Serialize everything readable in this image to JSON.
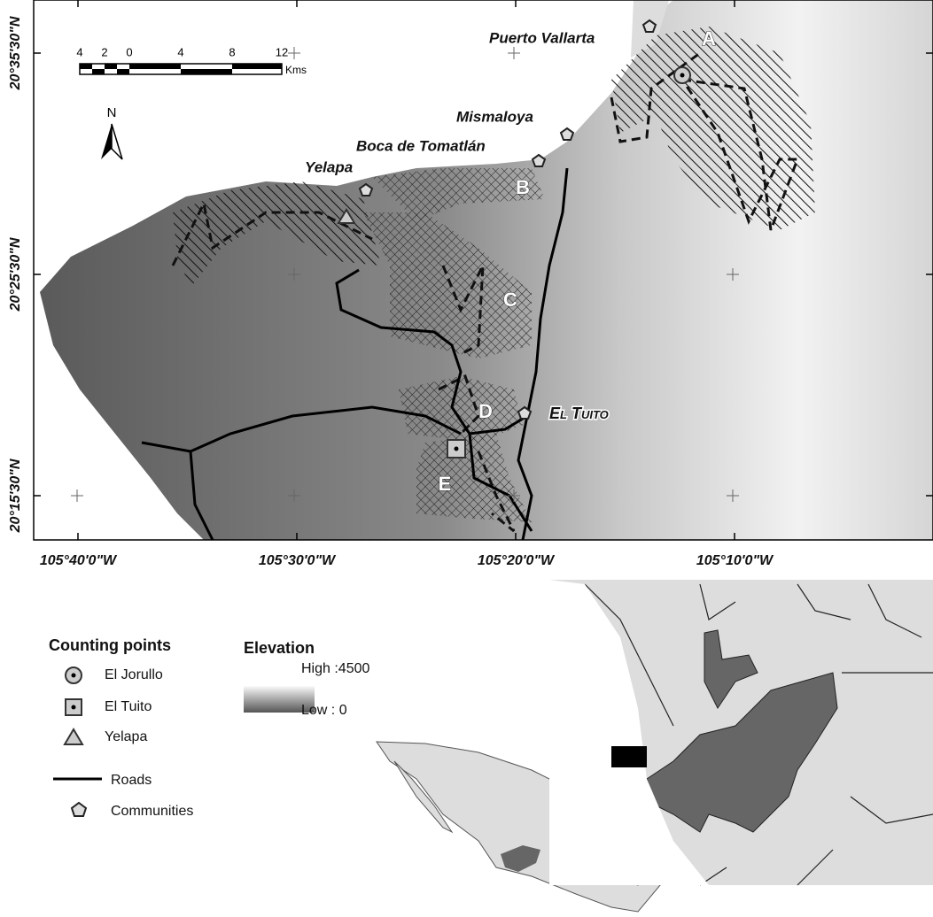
{
  "map": {
    "places": [
      "Puerto Vallarta",
      "Mismaloya",
      "Boca de Tomatlán",
      "Yelapa",
      "El Tuito"
    ],
    "zones": [
      "A",
      "B",
      "C",
      "D",
      "E"
    ],
    "lat_labels": [
      "20°35'30\"N",
      "20°25'30\"N",
      "20°15'30\"N"
    ],
    "lon_labels": [
      "105°40'0\"W",
      "105°30'0\"W",
      "105°20'0\"W",
      "105°10'0\"W"
    ],
    "scale": {
      "ticks": [
        "4",
        "2",
        "0",
        "4",
        "8",
        "12"
      ],
      "unit": "Kms"
    },
    "north": "N"
  },
  "legend": {
    "counting_title": "Counting points",
    "counting_items": [
      "El Jorullo",
      "El Tuito",
      "Yelapa"
    ],
    "roads": "Roads",
    "communities": "Communities",
    "elevation_title": "Elevation",
    "high": "High :4500",
    "low": "Low : 0"
  }
}
